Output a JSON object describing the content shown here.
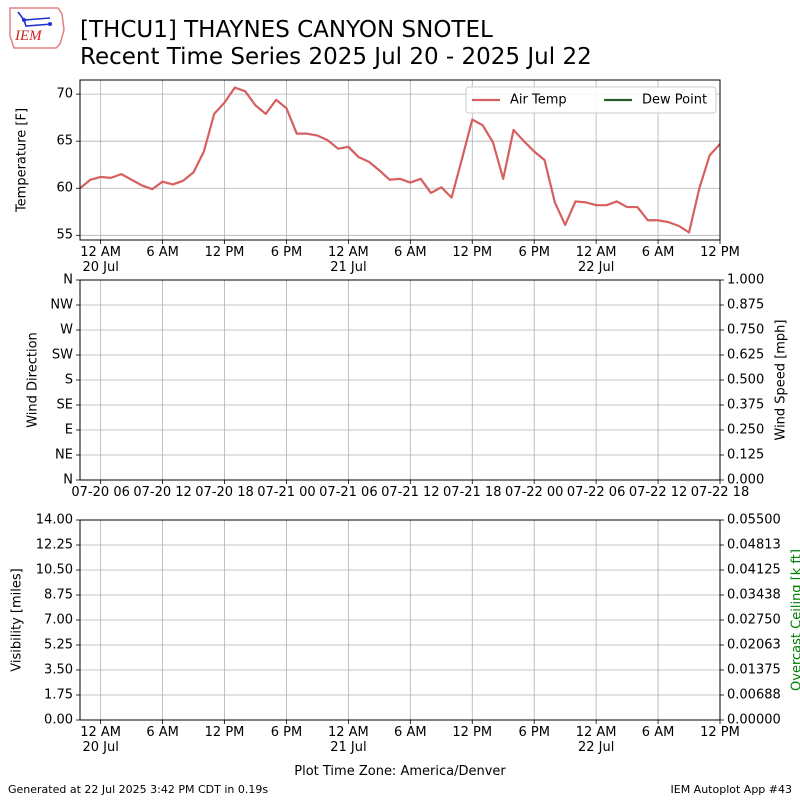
{
  "logo_text": "IEM",
  "title": "[THCU1] THAYNES CANYON SNOTEL",
  "subtitle": "Recent Time Series 2025 Jul 20 - 2025 Jul 22",
  "footer_left": "Generated at 22 Jul 2025 3:42 PM CDT in 0.19s",
  "footer_right": "IEM Autoplot App #43",
  "chart_data": [
    {
      "type": "line",
      "ylabel": "Temperature [F]",
      "grid": true,
      "legend": "upper right",
      "xlim": [
        "2025-07-19T22:00",
        "2025-07-22T12:00"
      ],
      "xticks": [
        {
          "value": "2025-07-20T00:00",
          "label": "12 AM\n20 Jul"
        },
        {
          "value": "2025-07-20T06:00",
          "label": "6 AM"
        },
        {
          "value": "2025-07-20T12:00",
          "label": "12 PM"
        },
        {
          "value": "2025-07-20T18:00",
          "label": "6 PM"
        },
        {
          "value": "2025-07-21T00:00",
          "label": "12 AM\n21 Jul"
        },
        {
          "value": "2025-07-21T06:00",
          "label": "6 AM"
        },
        {
          "value": "2025-07-21T12:00",
          "label": "12 PM"
        },
        {
          "value": "2025-07-21T18:00",
          "label": "6 PM"
        },
        {
          "value": "2025-07-22T00:00",
          "label": "12 AM\n22 Jul"
        },
        {
          "value": "2025-07-22T06:00",
          "label": "6 AM"
        },
        {
          "value": "2025-07-22T12:00",
          "label": "12 PM"
        }
      ],
      "ylim": [
        54.5,
        71.5
      ],
      "yticks": [
        55,
        60,
        65,
        70
      ],
      "x": [
        "2025-07-19T22:00",
        "2025-07-19T23:00",
        "2025-07-20T00:00",
        "2025-07-20T01:00",
        "2025-07-20T02:00",
        "2025-07-20T03:00",
        "2025-07-20T04:00",
        "2025-07-20T05:00",
        "2025-07-20T06:00",
        "2025-07-20T07:00",
        "2025-07-20T08:00",
        "2025-07-20T09:00",
        "2025-07-20T10:00",
        "2025-07-20T11:00",
        "2025-07-20T12:00",
        "2025-07-20T13:00",
        "2025-07-20T14:00",
        "2025-07-20T15:00",
        "2025-07-20T16:00",
        "2025-07-20T17:00",
        "2025-07-20T18:00",
        "2025-07-20T19:00",
        "2025-07-20T20:00",
        "2025-07-20T21:00",
        "2025-07-20T22:00",
        "2025-07-20T23:00",
        "2025-07-21T00:00",
        "2025-07-21T01:00",
        "2025-07-21T02:00",
        "2025-07-21T03:00",
        "2025-07-21T04:00",
        "2025-07-21T05:00",
        "2025-07-21T06:00",
        "2025-07-21T07:00",
        "2025-07-21T08:00",
        "2025-07-21T09:00",
        "2025-07-21T10:00",
        "2025-07-21T11:00",
        "2025-07-21T12:00",
        "2025-07-21T13:00",
        "2025-07-21T14:00",
        "2025-07-21T15:00",
        "2025-07-21T16:00",
        "2025-07-21T17:00",
        "2025-07-21T18:00",
        "2025-07-21T19:00",
        "2025-07-21T20:00",
        "2025-07-21T21:00",
        "2025-07-21T22:00",
        "2025-07-21T23:00",
        "2025-07-22T00:00",
        "2025-07-22T01:00",
        "2025-07-22T02:00",
        "2025-07-22T03:00",
        "2025-07-22T04:00",
        "2025-07-22T05:00",
        "2025-07-22T06:00",
        "2025-07-22T07:00",
        "2025-07-22T08:00",
        "2025-07-22T09:00",
        "2025-07-22T10:00",
        "2025-07-22T11:00",
        "2025-07-22T12:00"
      ],
      "series": [
        {
          "name": "Air Temp",
          "color": "#d65f5f",
          "values": [
            60.0,
            60.9,
            61.2,
            61.1,
            61.5,
            60.9,
            60.3,
            59.9,
            60.7,
            60.4,
            60.8,
            61.7,
            63.9,
            67.9,
            69.1,
            70.7,
            70.3,
            68.8,
            67.9,
            69.4,
            68.5,
            65.8,
            65.8,
            65.6,
            65.1,
            64.2,
            64.4,
            63.3,
            62.8,
            61.9,
            60.9,
            61.0,
            60.6,
            61.0,
            59.5,
            60.1,
            59.0,
            63.1,
            67.3,
            66.7,
            64.9,
            61.0,
            66.2,
            65.0,
            63.9,
            63.0,
            58.5,
            56.1,
            58.6,
            58.5,
            58.2,
            58.2,
            58.6,
            58.0,
            58.0,
            56.6,
            56.6,
            56.4,
            56.0,
            55.3,
            60.0,
            63.5,
            64.7
          ]
        },
        {
          "name": "Dew Point",
          "color": "#2b5d2b",
          "values": [
            null,
            null,
            null,
            null,
            null,
            null,
            null,
            null,
            null,
            null,
            null,
            null,
            null,
            null,
            null,
            null,
            null,
            null,
            null,
            null,
            null,
            null,
            null,
            null,
            null,
            null,
            null,
            null,
            null,
            null,
            null,
            null,
            null,
            null,
            null,
            null,
            null,
            null,
            null,
            null,
            null,
            null,
            null,
            null,
            null,
            null,
            null,
            null,
            null,
            null,
            null,
            null,
            null,
            null,
            null,
            null,
            null,
            null,
            null,
            null,
            null,
            null,
            null
          ]
        }
      ]
    },
    {
      "type": "line",
      "ylabel": "Wind Direction",
      "y2label": "Wind Speed [mph]",
      "grid": true,
      "xlim": [
        "2025-07-20T04:00",
        "2025-07-22T18:00"
      ],
      "xticks": [
        {
          "value": "2025-07-20T06:00",
          "label": "07-20 06"
        },
        {
          "value": "2025-07-20T12:00",
          "label": "07-20 12"
        },
        {
          "value": "2025-07-20T18:00",
          "label": "07-20 18"
        },
        {
          "value": "2025-07-21T00:00",
          "label": "07-21 00"
        },
        {
          "value": "2025-07-21T06:00",
          "label": "07-21 06"
        },
        {
          "value": "2025-07-21T12:00",
          "label": "07-21 12"
        },
        {
          "value": "2025-07-21T18:00",
          "label": "07-21 18"
        },
        {
          "value": "2025-07-22T00:00",
          "label": "07-22 00"
        },
        {
          "value": "2025-07-22T06:00",
          "label": "07-22 06"
        },
        {
          "value": "2025-07-22T12:00",
          "label": "07-22 12"
        },
        {
          "value": "2025-07-22T18:00",
          "label": "07-22 18"
        }
      ],
      "ylim": [
        0,
        360
      ],
      "yticks": [
        {
          "value": 0,
          "label": "N"
        },
        {
          "value": 45,
          "label": "NE"
        },
        {
          "value": 90,
          "label": "E"
        },
        {
          "value": 135,
          "label": "SE"
        },
        {
          "value": 180,
          "label": "S"
        },
        {
          "value": 225,
          "label": "SW"
        },
        {
          "value": 270,
          "label": "W"
        },
        {
          "value": 315,
          "label": "NW"
        },
        {
          "value": 360,
          "label": "N"
        }
      ],
      "y2lim": [
        0,
        1
      ],
      "y2ticks": [
        {
          "value": 0,
          "label": "0.000"
        },
        {
          "value": 0.125,
          "label": "0.125"
        },
        {
          "value": 0.25,
          "label": "0.250"
        },
        {
          "value": 0.375,
          "label": "0.375"
        },
        {
          "value": 0.5,
          "label": "0.500"
        },
        {
          "value": 0.625,
          "label": "0.625"
        },
        {
          "value": 0.75,
          "label": "0.750"
        },
        {
          "value": 0.875,
          "label": "0.875"
        },
        {
          "value": 1,
          "label": "1.000"
        }
      ],
      "series": []
    },
    {
      "type": "line",
      "ylabel": "Visibility [miles]",
      "y2label": "Overcast Ceiling [k ft]",
      "y2label_color": "green",
      "xlabel": "Plot Time Zone: America/Denver",
      "grid": true,
      "xlim": [
        "2025-07-19T22:00",
        "2025-07-22T12:00"
      ],
      "xticks": [
        {
          "value": "2025-07-20T00:00",
          "label": "12 AM\n20 Jul"
        },
        {
          "value": "2025-07-20T06:00",
          "label": "6 AM"
        },
        {
          "value": "2025-07-20T12:00",
          "label": "12 PM"
        },
        {
          "value": "2025-07-20T18:00",
          "label": "6 PM"
        },
        {
          "value": "2025-07-21T00:00",
          "label": "12 AM\n21 Jul"
        },
        {
          "value": "2025-07-21T06:00",
          "label": "6 AM"
        },
        {
          "value": "2025-07-21T12:00",
          "label": "12 PM"
        },
        {
          "value": "2025-07-21T18:00",
          "label": "6 PM"
        },
        {
          "value": "2025-07-22T00:00",
          "label": "12 AM\n22 Jul"
        },
        {
          "value": "2025-07-22T06:00",
          "label": "6 AM"
        },
        {
          "value": "2025-07-22T12:00",
          "label": "12 PM"
        }
      ],
      "ylim": [
        0,
        14
      ],
      "yticks": [
        {
          "value": 0,
          "label": "0.00"
        },
        {
          "value": 1.75,
          "label": "1.75"
        },
        {
          "value": 3.5,
          "label": "3.50"
        },
        {
          "value": 5.25,
          "label": "5.25"
        },
        {
          "value": 7,
          "label": "7.00"
        },
        {
          "value": 8.75,
          "label": "8.75"
        },
        {
          "value": 10.5,
          "label": "10.50"
        },
        {
          "value": 12.25,
          "label": "12.25"
        },
        {
          "value": 14,
          "label": "14.00"
        }
      ],
      "y2lim": [
        0,
        0.055
      ],
      "y2ticks": [
        {
          "value": 0,
          "label": "0.00000"
        },
        {
          "value": 0.006875,
          "label": "0.00688"
        },
        {
          "value": 0.01375,
          "label": "0.01375"
        },
        {
          "value": 0.020625,
          "label": "0.02063"
        },
        {
          "value": 0.0275,
          "label": "0.02750"
        },
        {
          "value": 0.034375,
          "label": "0.03438"
        },
        {
          "value": 0.04125,
          "label": "0.04125"
        },
        {
          "value": 0.048125,
          "label": "0.04813"
        },
        {
          "value": 0.055,
          "label": "0.05500"
        }
      ],
      "series": []
    }
  ]
}
